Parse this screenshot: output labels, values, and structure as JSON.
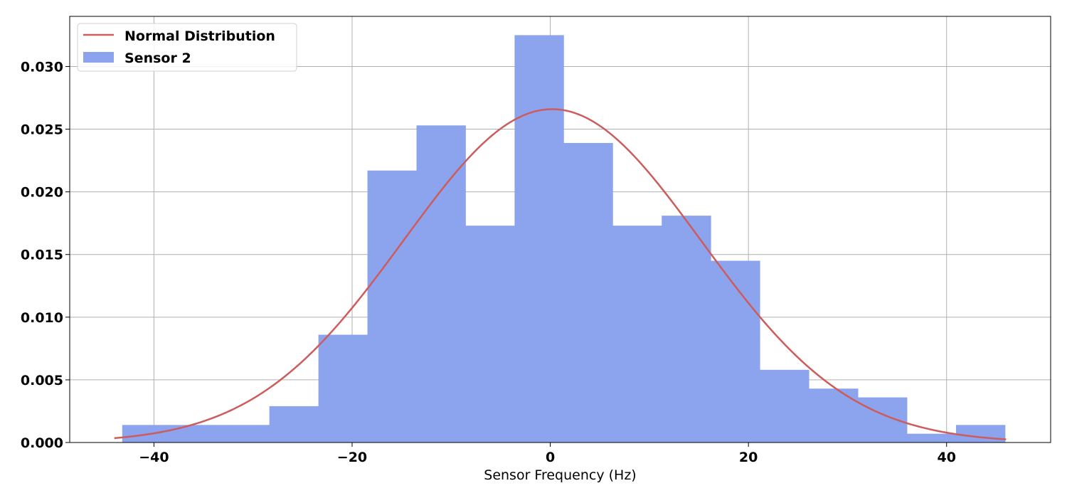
{
  "chart_data": {
    "type": "bar",
    "title": "",
    "xlabel": "Sensor Frequency (Hz)",
    "ylabel": "",
    "xlim": [
      -48.5,
      50.5
    ],
    "ylim": [
      0,
      0.034
    ],
    "grid": true,
    "legend_position": "top-left",
    "x_ticks": [
      -40,
      -20,
      0,
      20,
      40
    ],
    "x_tick_labels": [
      "−40",
      "−20",
      "0",
      "20",
      "40"
    ],
    "y_ticks": [
      0,
      0.005,
      0.01,
      0.015,
      0.02,
      0.025,
      0.03
    ],
    "y_tick_labels": [
      "0.000",
      "0.005",
      "0.010",
      "0.015",
      "0.020",
      "0.025",
      "0.030"
    ],
    "histogram": {
      "name": "Sensor 2",
      "color": "#8ca3ee",
      "bin_edges": [
        -43.2,
        -38.25,
        -33.3,
        -28.35,
        -23.4,
        -18.45,
        -13.5,
        -8.55,
        -3.6,
        1.35,
        6.3,
        11.25,
        16.2,
        21.15,
        26.1,
        31.05,
        36.0,
        40.95,
        45.9
      ],
      "values": [
        0.0014,
        0.0014,
        0.0014,
        0.0029,
        0.0086,
        0.0217,
        0.0253,
        0.0173,
        0.0325,
        0.0239,
        0.0173,
        0.0181,
        0.0145,
        0.0058,
        0.0043,
        0.0036,
        0.0007,
        0.0014
      ]
    },
    "curve": {
      "name": "Normal Distribution",
      "color": "#cd5c5c",
      "mean": 0.2,
      "std": 15.0,
      "x_range": [
        -44.0,
        46.0
      ]
    }
  }
}
